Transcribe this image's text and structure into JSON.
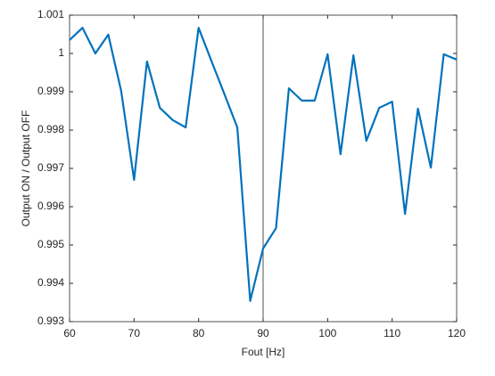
{
  "chart_data": {
    "type": "line",
    "x_label": "Fout [Hz]",
    "y_label": "Output ON / Output OFF",
    "x": [
      60,
      62,
      64,
      66,
      68,
      70,
      72,
      74,
      76,
      78,
      80,
      82,
      84,
      86,
      88,
      90,
      92,
      94,
      96,
      98,
      100,
      102,
      104,
      106,
      108,
      110,
      112,
      114,
      116,
      118,
      120
    ],
    "series": [
      {
        "color": "#0072bd",
        "values": [
          1.00035,
          1.00067,
          1.0,
          1.00049,
          0.99902,
          0.9967,
          0.99979,
          0.99858,
          0.99826,
          0.99807,
          1.00067,
          0.9998,
          0.99894,
          0.99807,
          0.99354,
          0.99491,
          0.99544,
          0.99909,
          0.99877,
          0.99877,
          0.99998,
          0.99737,
          0.99995,
          0.99772,
          0.99858,
          0.99874,
          0.99581,
          0.99856,
          0.99702,
          0.99998,
          0.99984
        ]
      }
    ],
    "xlim": [
      60,
      120
    ],
    "xticks": [
      60,
      70,
      80,
      90,
      100,
      110,
      120
    ],
    "ylim": [
      0.993,
      1.001
    ],
    "yticks": [
      0.993,
      0.994,
      0.995,
      0.996,
      0.997,
      0.998,
      0.999,
      1,
      1.001
    ],
    "vline": 90,
    "vline_color": "#262626",
    "grid": false
  }
}
